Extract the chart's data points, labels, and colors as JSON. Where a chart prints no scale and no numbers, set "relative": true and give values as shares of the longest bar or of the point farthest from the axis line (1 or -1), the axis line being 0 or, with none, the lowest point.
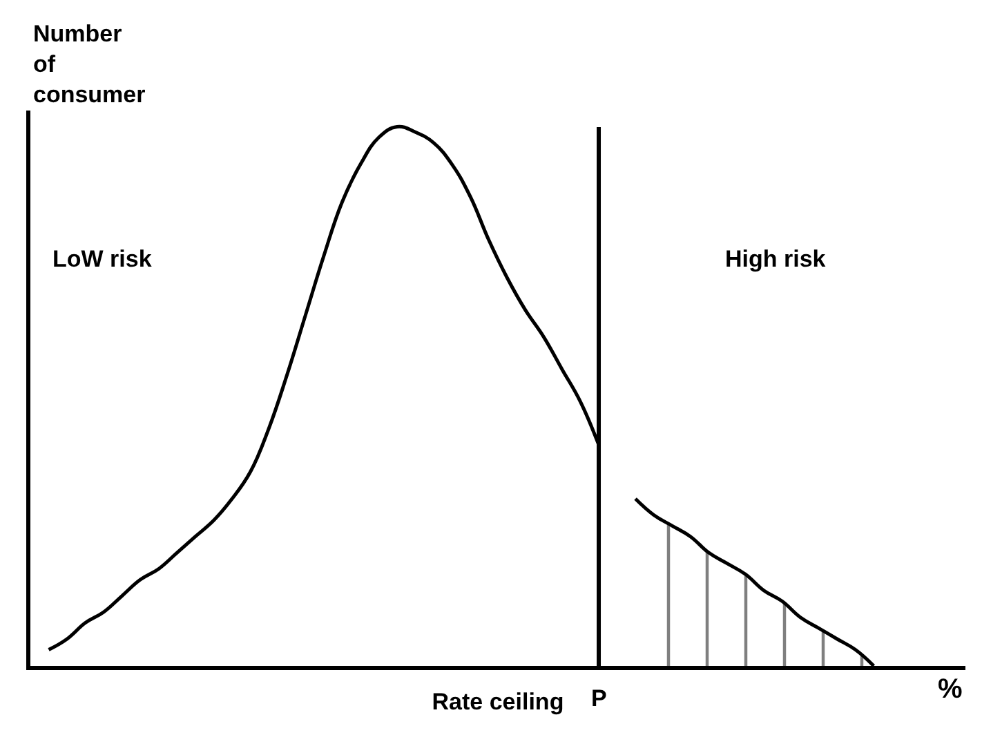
{
  "chart_data": {
    "type": "line",
    "relative": true,
    "ylabel": "Number\nof\nconsumer",
    "xlabel": "Rate ceiling",
    "categories": [
      null,
      null,
      null,
      null,
      null,
      null,
      null,
      null,
      null,
      null,
      null,
      null,
      null,
      null,
      null,
      null,
      null,
      null,
      null,
      null,
      null,
      null,
      null,
      null,
      null,
      null,
      null,
      null,
      null,
      null,
      null,
      null,
      null,
      null,
      null,
      null,
      null,
      null,
      null,
      null,
      null,
      null,
      null,
      null,
      null,
      null
    ],
    "series": [
      {
        "color": "#000000",
        "values": [
          0.03,
          0.05,
          0.08,
          0.1,
          0.13,
          0.16,
          0.18,
          0.21,
          0.24,
          0.27,
          0.31,
          0.36,
          0.44,
          0.54,
          0.65,
          0.76,
          0.86,
          0.93,
          0.98,
          1.0,
          0.99,
          0.97,
          0.93,
          0.87,
          0.79,
          0.72,
          0.66,
          0.61,
          0.55,
          0.49,
          0.41,
          null,
          null,
          null,
          null,
          null,
          null,
          null,
          null,
          null,
          null,
          null,
          null,
          null,
          null,
          null
        ]
      },
      {
        "type": "area",
        "color": "#000000",
        "values": [
          null,
          null,
          null,
          null,
          null,
          null,
          null,
          null,
          null,
          null,
          null,
          null,
          null,
          null,
          null,
          null,
          null,
          null,
          null,
          null,
          null,
          null,
          null,
          null,
          null,
          null,
          null,
          null,
          null,
          null,
          null,
          null,
          0.31,
          0.28,
          0.26,
          0.24,
          0.21,
          0.19,
          0.17,
          0.14,
          0.12,
          0.09,
          0.07,
          0.05,
          0.03,
          0.0
        ]
      }
    ],
    "annotations": [
      "LoW risk",
      "High risk",
      "%",
      "P"
    ],
    "marker": "none",
    "line_style": "solid"
  }
}
